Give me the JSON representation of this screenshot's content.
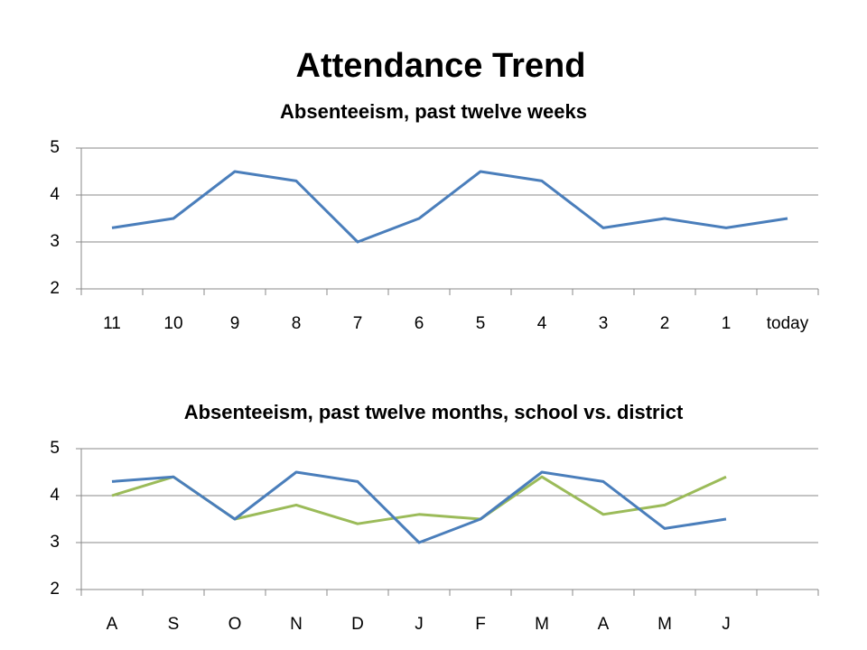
{
  "title": "Attendance Trend",
  "chart_data": [
    {
      "type": "line",
      "title": "Absenteeism, past twelve weeks",
      "categories": [
        "11",
        "10",
        "9",
        "8",
        "7",
        "6",
        "5",
        "4",
        "3",
        "2",
        "1",
        "today"
      ],
      "series": [
        {
          "color": "#4a7ebb",
          "values": [
            3.3,
            3.5,
            4.5,
            4.3,
            3.0,
            3.5,
            4.5,
            4.3,
            3.3,
            3.5,
            3.3,
            3.5
          ]
        }
      ],
      "ylim": [
        2,
        5
      ],
      "yticks": [
        2,
        3,
        4,
        5
      ],
      "grid": true
    },
    {
      "type": "line",
      "title": "Absenteeism, past twelve months, school vs. district",
      "categories": [
        "A",
        "S",
        "O",
        "N",
        "D",
        "J",
        "F",
        "M",
        "A",
        "M",
        "J",
        null
      ],
      "series": [
        {
          "color": "#9bbb59",
          "values": [
            4.0,
            4.4,
            3.5,
            3.8,
            3.4,
            3.6,
            3.5,
            4.4,
            3.6,
            3.8,
            4.4,
            null
          ]
        },
        {
          "color": "#4a7ebb",
          "values": [
            4.3,
            4.4,
            3.5,
            4.5,
            4.3,
            3.0,
            3.5,
            4.5,
            4.3,
            3.3,
            3.5,
            null
          ]
        }
      ],
      "ylim": [
        2,
        5
      ],
      "yticks": [
        2,
        3,
        4,
        5
      ],
      "grid": true
    }
  ]
}
